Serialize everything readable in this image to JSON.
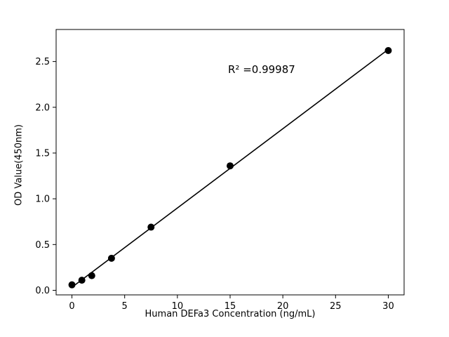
{
  "chart_data": {
    "type": "scatter",
    "title": "",
    "xlabel": "Human DEFa3 Concentration (ng/mL)",
    "ylabel": "OD Value(450nm)",
    "annotation": "R² =0.99987",
    "x": [
      0,
      0.94,
      1.88,
      3.75,
      7.5,
      15,
      30
    ],
    "y": [
      0.06,
      0.11,
      0.16,
      0.35,
      0.69,
      1.36,
      2.62
    ],
    "fit": "linear",
    "xlim": [
      -1.5,
      31.5
    ],
    "ylim": [
      -0.05,
      2.85
    ],
    "xticks": {
      "values": [
        0,
        5,
        10,
        15,
        20,
        25,
        30
      ],
      "labels": [
        "0",
        "5",
        "10",
        "15",
        "20",
        "25",
        "30"
      ]
    },
    "yticks": {
      "values": [
        0,
        0.5,
        1.0,
        1.5,
        2.0,
        2.5
      ],
      "labels": [
        "0.0",
        "0.5",
        "1.0",
        "1.5",
        "2.0",
        "2.5"
      ]
    },
    "legend": null,
    "grid": false,
    "marker_color": "#000000",
    "line_color": "#000000",
    "background": "#ffffff"
  }
}
